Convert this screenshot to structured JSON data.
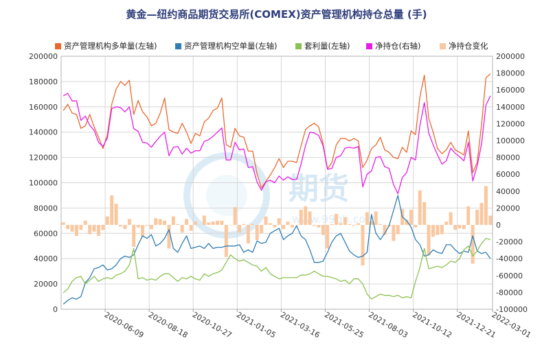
{
  "chart_data": {
    "type": "bar",
    "title": "黄金—纽约商品期货交易所(COMEX)资产管理机构持仓总量 (手)",
    "xlabel": "",
    "ylabel": "",
    "legend_position": "top",
    "grid": true,
    "x_tick_labels": [
      "2020-06-09",
      "2020-08-18",
      "2020-10-27",
      "2021-01-05",
      "2021-03-16",
      "2021-05-25",
      "2021-08-03",
      "2021-10-12",
      "2021-12-21",
      "2022-03-01"
    ],
    "left_axis": {
      "min": 0,
      "max": 200000,
      "ticks": [
        "0",
        "20000",
        "40000",
        "60000",
        "80000",
        "100000",
        "120000",
        "140000",
        "160000",
        "180000",
        "200000"
      ]
    },
    "right_axis": {
      "min": -100000,
      "max": 200000,
      "ticks": [
        "-100000",
        "-80000",
        "-60000",
        "-40000",
        "-20000",
        "0",
        "20000",
        "40000",
        "60000",
        "80000",
        "100000",
        "120000",
        "140000",
        "160000",
        "180000",
        "200000"
      ]
    },
    "watermark": "期货",
    "watermark_url": "www.99qh.com",
    "series": [
      {
        "name": "资产管理机构多单量(左轴)",
        "type": "line",
        "axis": "left",
        "color": "#e8692d",
        "values": [
          157000,
          162000,
          155000,
          154000,
          143000,
          145000,
          154000,
          144000,
          136000,
          127000,
          138000,
          162000,
          174000,
          180000,
          177000,
          181000,
          154000,
          165000,
          156000,
          152000,
          145000,
          147000,
          155000,
          167000,
          142000,
          140000,
          139000,
          147000,
          140000,
          131000,
          139000,
          137000,
          148000,
          151000,
          157000,
          159000,
          167000,
          130000,
          128000,
          143000,
          137000,
          136000,
          125000,
          125000,
          107000,
          96000,
          101000,
          106000,
          112000,
          119000,
          112000,
          117000,
          117000,
          116000,
          129000,
          142000,
          145000,
          147000,
          144000,
          131000,
          111000,
          116000,
          130000,
          135000,
          135000,
          133000,
          135000,
          133000,
          112000,
          118000,
          127000,
          130000,
          136000,
          126000,
          124000,
          120000,
          119000,
          128000,
          124000,
          141000,
          138000,
          168000,
          185000,
          151000,
          140000,
          127000,
          123000,
          126000,
          132000,
          126000,
          124000,
          122000,
          141000,
          108000,
          116000,
          146000,
          183000,
          186000
        ]
      },
      {
        "name": "资产管理机构空单量(左轴)",
        "type": "line",
        "axis": "left",
        "color": "#2f7db4",
        "values": [
          4000,
          7000,
          9000,
          8000,
          10000,
          21000,
          25000,
          32000,
          33000,
          35000,
          31000,
          32000,
          35000,
          40000,
          42000,
          41000,
          43000,
          51000,
          58000,
          56000,
          59000,
          50000,
          52000,
          56000,
          63000,
          48000,
          45000,
          52000,
          58000,
          48000,
          49000,
          50000,
          48000,
          52000,
          48000,
          49000,
          49000,
          50000,
          50000,
          50000,
          51000,
          45000,
          47000,
          45000,
          54000,
          52000,
          53000,
          60000,
          62000,
          64000,
          55000,
          58000,
          60000,
          66000,
          58000,
          55000,
          47000,
          37000,
          37000,
          38000,
          45000,
          53000,
          58000,
          60000,
          53000,
          46000,
          43000,
          41000,
          42000,
          45000,
          75000,
          60000,
          55000,
          60000,
          66000,
          78000,
          90000,
          73000,
          70000,
          65000,
          55000,
          51000,
          42000,
          43000,
          47000,
          45000,
          44000,
          51000,
          51000,
          47000,
          44000,
          46000,
          45000,
          58000,
          46000,
          44000,
          45000,
          40000
        ]
      },
      {
        "name": "套利量(左轴)",
        "type": "line",
        "axis": "left",
        "color": "#8cc152",
        "values": [
          13000,
          16000,
          22000,
          25000,
          26000,
          20000,
          23000,
          26000,
          22000,
          24000,
          25000,
          24000,
          27000,
          28000,
          30000,
          35000,
          48000,
          24000,
          25000,
          23000,
          24000,
          23000,
          26000,
          28000,
          28000,
          25000,
          22000,
          25000,
          24000,
          26000,
          24000,
          23000,
          28000,
          26000,
          28000,
          29000,
          31000,
          37000,
          43000,
          40000,
          38000,
          39000,
          37000,
          35000,
          34000,
          30000,
          33000,
          28000,
          26000,
          24000,
          25000,
          25000,
          25000,
          25000,
          27000,
          27000,
          28000,
          30000,
          28000,
          26000,
          26000,
          25000,
          24000,
          22000,
          23000,
          20000,
          24000,
          24000,
          20000,
          12000,
          8000,
          10000,
          12000,
          11000,
          11000,
          10000,
          11000,
          9000,
          10000,
          9000,
          22000,
          33000,
          48000,
          32000,
          33000,
          34000,
          33000,
          35000,
          38000,
          37000,
          40000,
          47000,
          50000,
          42000,
          46000,
          52000,
          56000,
          55000
        ]
      },
      {
        "name": "净持仓(右轴)",
        "type": "line",
        "axis": "right",
        "color": "#e51ce5",
        "values": [
          153000,
          156000,
          147000,
          147000,
          124000,
          129000,
          118000,
          112000,
          98000,
          93000,
          103000,
          138000,
          140000,
          139000,
          134000,
          140000,
          114000,
          111000,
          98000,
          97000,
          92000,
          99000,
          105000,
          110000,
          82000,
          92000,
          93000,
          84000,
          91000,
          85000,
          88000,
          88000,
          99000,
          101000,
          105000,
          110000,
          115000,
          77000,
          77000,
          98000,
          89000,
          90000,
          68000,
          69000,
          51000,
          41000,
          51000,
          53000,
          50000,
          58000,
          53000,
          57000,
          54000,
          54000,
          72000,
          94000,
          110000,
          109000,
          106000,
          94000,
          66000,
          67000,
          80000,
          82000,
          91000,
          92000,
          91000,
          93000,
          45000,
          60000,
          64000,
          80000,
          81000,
          69000,
          67000,
          48000,
          37000,
          56000,
          62000,
          80000,
          77000,
          118000,
          145000,
          109000,
          95000,
          83000,
          72000,
          76000,
          91000,
          85000,
          81000,
          76000,
          98000,
          52000,
          70000,
          96000,
          142000,
          153000
        ]
      },
      {
        "name": "净持仓变化",
        "type": "bar",
        "axis": "right",
        "color": "#fac8a0",
        "values": [
          3000,
          -5000,
          -8000,
          -13000,
          -6000,
          5000,
          -11000,
          -8000,
          -13000,
          -6000,
          10000,
          35000,
          25000,
          -2000,
          -5000,
          7000,
          -26000,
          -3000,
          -14000,
          -1000,
          -5000,
          8000,
          7000,
          5000,
          -28000,
          10000,
          1000,
          -9000,
          7000,
          -7000,
          4000,
          0,
          11000,
          3000,
          4000,
          5000,
          5000,
          -38000,
          0,
          21000,
          -9000,
          1000,
          -22000,
          1000,
          -18000,
          -10000,
          10000,
          2000,
          -3000,
          8000,
          -5000,
          4000,
          -3000,
          0,
          18000,
          22000,
          16000,
          -1000,
          -3000,
          -12000,
          -28000,
          1000,
          13000,
          2000,
          9000,
          1000,
          -1000,
          2000,
          -48000,
          15000,
          4000,
          16000,
          1000,
          -12000,
          -2000,
          -19000,
          -11000,
          19000,
          6000,
          18000,
          -3000,
          41000,
          27000,
          -36000,
          -14000,
          -12000,
          -11000,
          4000,
          15000,
          -6000,
          -4000,
          -5000,
          22000,
          -46000,
          18000,
          26000,
          46000,
          11000
        ]
      }
    ]
  }
}
